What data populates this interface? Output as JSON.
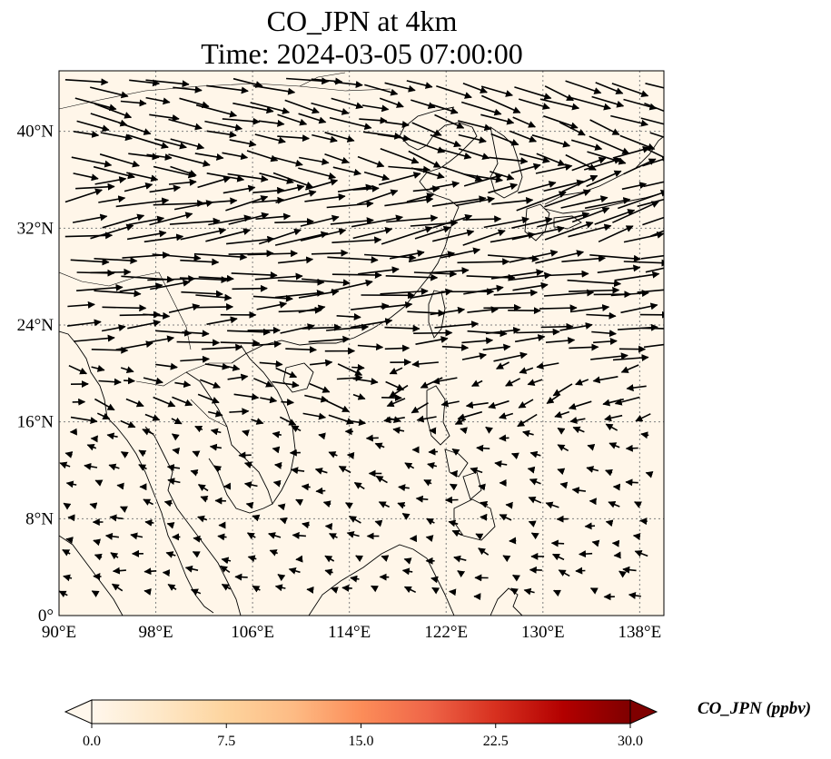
{
  "title": {
    "line1": "CO_JPN at 4km",
    "line2": "Time: 2024-03-05 07:00:00"
  },
  "map": {
    "lon_range": [
      90,
      140
    ],
    "lat_range": [
      0,
      45
    ],
    "lon_ticks": [
      {
        "value": 90,
        "label": "90°E"
      },
      {
        "value": 98,
        "label": "98°E"
      },
      {
        "value": 106,
        "label": "106°E"
      },
      {
        "value": 114,
        "label": "114°E"
      },
      {
        "value": 122,
        "label": "122°E"
      },
      {
        "value": 130,
        "label": "130°E"
      },
      {
        "value": 138,
        "label": "138°E"
      }
    ],
    "lat_ticks": [
      {
        "value": 0,
        "label": "0°"
      },
      {
        "value": 8,
        "label": "8°N"
      },
      {
        "value": 16,
        "label": "16°N"
      },
      {
        "value": 24,
        "label": "24°N"
      },
      {
        "value": 32,
        "label": "32°N"
      },
      {
        "value": 40,
        "label": "40°N"
      }
    ],
    "field_color": "#fff6e9",
    "gridline_color": "#7f7f7f",
    "coastline_color": "#000000",
    "wind_arrows": "black quiver vectors; strong westerlies north of ~20°N, weak easterlies/northeasterlies south of ~20°N"
  },
  "colorbar": {
    "label": "CO_JPN (ppbv)",
    "min": 0.0,
    "max": 30.0,
    "extend": "both",
    "colormap": "OrRd",
    "colors": [
      "#fff7ec",
      "#fee8c8",
      "#fdd49e",
      "#fdbb84",
      "#fc8d59",
      "#ef6548",
      "#d7301f",
      "#b30000",
      "#7f0000"
    ],
    "ticks": [
      "0.0",
      "7.5",
      "15.0",
      "22.5",
      "30.0"
    ]
  }
}
